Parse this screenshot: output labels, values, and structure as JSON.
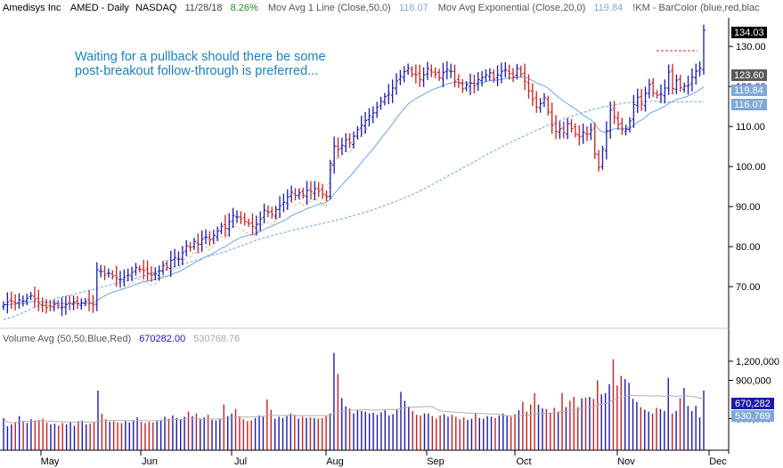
{
  "header": {
    "symbol_name": "Amedisys Inc",
    "ticker": "AMED - Daily",
    "exchange": "NASDAQ",
    "date": "11/28/18",
    "change": "8.26%",
    "ma1_label": "Mov Avg 1 Line (Close,50,0)",
    "ma1_value": "116.07",
    "ema_label": "Mov Avg Exponential (Close,20,0)",
    "ema_value": "119.84",
    "barcolor_label": "!KM - BarColor (blue,red,blac"
  },
  "annotation": {
    "line1": "Waiting for a pullback should there be some",
    "line2": "post-breakout follow-through is preferred..."
  },
  "volume_header": {
    "label": "Volume Avg (50,50,Blue,Red)",
    "avg1": "670282.00",
    "avg2": "530768.76"
  },
  "colors": {
    "up": "#1a1aa8",
    "down": "#c81e1e",
    "ma": "#6aa8e8",
    "ema_dash": "#c87850",
    "change": "#1e8c1e",
    "header_val": "#7fa8d8",
    "annotation": "#1e7fbf"
  },
  "badges": {
    "last": "134.03",
    "b1": "123.60",
    "b2": "119.84",
    "b3": "116.07",
    "v1": "670,282",
    "v2": "530,769"
  },
  "chart_data": {
    "type": "ohlc",
    "price_ticks": [
      "130.00",
      "120.00",
      "110.00",
      "100.00",
      "90.00",
      "80.00",
      "70.00"
    ],
    "price_tick_values": [
      130,
      120,
      110,
      100,
      90,
      80,
      70
    ],
    "ylim": [
      60,
      136
    ],
    "volume_ticks": [
      "1,200,000",
      "900,000",
      "300,000"
    ],
    "volume_tick_values": [
      1200000,
      900000,
      300000
    ],
    "volume_ylim": [
      0,
      1400000
    ],
    "months": [
      "May",
      "Jun",
      "Jul",
      "Aug",
      "Sep",
      "Oct",
      "Nov",
      "Dec"
    ],
    "closes": [
      65.5,
      66.2,
      66.4,
      65.8,
      66.7,
      66.4,
      67.1,
      67.8,
      66.9,
      65.8,
      65.3,
      64.8,
      65.1,
      65.6,
      65.2,
      64.9,
      65.5,
      65.8,
      66.1,
      65.7,
      65.9,
      66.3,
      66.0,
      65.4,
      74.2,
      73.8,
      72.9,
      73.4,
      72.6,
      72.1,
      71.8,
      72.4,
      72.9,
      73.6,
      74.8,
      74.3,
      74.0,
      73.4,
      72.9,
      73.2,
      73.9,
      75.3,
      74.8,
      76.6,
      77.3,
      76.9,
      78.5,
      80.2,
      79.8,
      81.3,
      80.6,
      81.9,
      82.4,
      81.7,
      82.8,
      83.9,
      85.1,
      84.6,
      86.2,
      87.8,
      87.4,
      86.9,
      86.3,
      85.7,
      85.1,
      85.6,
      86.9,
      89.1,
      88.6,
      88.0,
      89.3,
      90.2,
      91.1,
      92.4,
      93.6,
      92.8,
      93.4,
      92.8,
      94.0,
      93.7,
      94.5,
      93.9,
      93.1,
      92.4,
      100.8,
      105.1,
      104.2,
      105.3,
      106.7,
      105.9,
      107.6,
      109.2,
      110.3,
      111.5,
      112.7,
      113.4,
      114.8,
      116.3,
      117.5,
      118.2,
      119.6,
      121.4,
      122.5,
      123.7,
      124.6,
      123.1,
      122.9,
      121.8,
      122.9,
      124.5,
      123.6,
      123.1,
      122.2,
      123.5,
      124.2,
      123.8,
      121.3,
      120.9,
      119.4,
      120.4,
      120.8,
      120.2,
      121.7,
      122.2,
      122.9,
      123.4,
      121.8,
      122.9,
      123.8,
      124.2,
      123.2,
      122.4,
      124.5,
      123.1,
      121.3,
      118.9,
      116.8,
      114.9,
      115.7,
      117.2,
      113.6,
      110.3,
      108.8,
      109.4,
      108.5,
      110.7,
      109.5,
      108.1,
      107.4,
      108.6,
      108.1,
      109.2,
      103.2,
      99.8,
      104.3,
      108.9,
      114.1,
      112.3,
      110.6,
      109.2,
      109.3,
      111.4,
      115.5,
      117.3,
      115.6,
      118.3,
      120.5,
      118.4,
      117.8,
      118.1,
      119.6,
      123.6,
      119.5,
      121.6,
      119.7,
      120.1,
      120.3,
      122.4,
      123.8,
      124.6,
      134.03
    ],
    "ma50": [
      61.8,
      62.3,
      63.1,
      63.9,
      64.8,
      65.7,
      66.5,
      67.2,
      67.6,
      68.0,
      68.5,
      69.0,
      69.5,
      70.0,
      70.5,
      71.0,
      71.5,
      72.0,
      72.6,
      73.2,
      73.7,
      74.3,
      74.8,
      75.4,
      76.0,
      76.6,
      77.2,
      77.8,
      78.3,
      78.9,
      79.6,
      80.3,
      81.0,
      81.7,
      82.3,
      82.8,
      83.3,
      83.8,
      84.3,
      84.7,
      85.2,
      85.6,
      86.0,
      86.5,
      86.9,
      87.5,
      88.0,
      88.6,
      89.2,
      89.9,
      90.6,
      91.3,
      92.1,
      92.9,
      93.8,
      94.8,
      95.8,
      96.8,
      97.9,
      98.9,
      100.0,
      101.0,
      102.1,
      103.2,
      104.2,
      105.2,
      106.1,
      107.0,
      107.9,
      108.8,
      109.7,
      110.5,
      111.3,
      112.0,
      112.7,
      113.3,
      113.9,
      114.4,
      114.9,
      115.3,
      115.6,
      115.9,
      116.1,
      116.2,
      116.3,
      116.3,
      116.2,
      116.1,
      116.1,
      116.2,
      116.2,
      116.1
    ],
    "ema20": [
      65.4,
      65.5,
      65.6,
      65.7,
      65.8,
      65.8,
      66.0,
      66.2,
      66.3,
      66.3,
      66.2,
      66.1,
      66.0,
      66.0,
      65.9,
      65.8,
      65.8,
      65.8,
      65.8,
      65.8,
      65.8,
      65.8,
      65.8,
      65.8,
      66.5,
      67.2,
      67.7,
      68.2,
      68.6,
      68.9,
      69.2,
      69.5,
      69.8,
      70.2,
      70.6,
      70.9,
      71.2,
      71.4,
      71.6,
      71.8,
      72.0,
      72.4,
      72.6,
      73.0,
      73.4,
      73.7,
      74.2,
      74.8,
      75.3,
      75.9,
      76.4,
      76.9,
      77.5,
      77.9,
      78.4,
      79.0,
      79.6,
      80.0,
      80.6,
      81.3,
      81.8,
      82.3,
      82.6,
      82.9,
      83.1,
      83.4,
      83.8,
      84.3,
      84.8,
      85.1,
      85.6,
      86.0,
      86.5,
      87.1,
      87.7,
      88.2,
      88.6,
      89.0,
      89.5,
      89.8,
      90.2,
      90.6,
      90.8,
      91.1,
      91.9,
      93.2,
      94.3,
      95.4,
      96.5,
      97.5,
      98.6,
      99.8,
      101.0,
      102.2,
      103.3,
      104.4,
      105.7,
      107.0,
      108.2,
      109.4,
      110.7,
      112.1,
      113.3,
      114.5,
      115.6,
      116.3,
      117.0,
      117.5,
      118.0,
      118.6,
      119.1,
      119.5,
      119.8,
      120.2,
      120.6,
      120.9,
      121.0,
      121.0,
      120.9,
      120.9,
      120.9,
      120.8,
      120.9,
      121.0,
      121.2,
      121.5,
      121.5,
      121.6,
      121.8,
      122.0,
      122.1,
      122.1,
      122.3,
      122.4,
      122.3,
      122.0,
      121.5,
      120.9,
      120.5,
      120.2,
      119.6,
      118.7,
      117.8,
      117.1,
      116.3,
      115.7,
      115.0,
      114.4,
      113.6,
      112.9,
      112.2,
      111.7,
      110.6,
      109.3,
      108.6,
      108.6,
      109.1,
      109.4,
      109.5,
      109.5,
      109.5,
      109.7,
      110.3,
      111.1,
      111.6,
      112.3,
      113.2,
      113.7,
      114.1,
      114.6,
      115.0,
      115.8,
      116.2,
      116.8,
      117.0,
      117.3,
      117.6,
      118.1,
      118.6,
      119.2,
      119.84
    ],
    "volume": [
      310000,
      180000,
      210000,
      250000,
      340000,
      260000,
      230000,
      290000,
      270000,
      280000,
      300000,
      240000,
      210000,
      220000,
      190000,
      230000,
      210000,
      240000,
      190000,
      260000,
      270000,
      210000,
      220000,
      250000,
      740000,
      380000,
      290000,
      250000,
      260000,
      240000,
      230000,
      260000,
      240000,
      270000,
      320000,
      250000,
      230000,
      250000,
      240000,
      260000,
      280000,
      330000,
      300000,
      350000,
      310000,
      280000,
      330000,
      410000,
      340000,
      380000,
      300000,
      320000,
      360000,
      280000,
      270000,
      300000,
      520000,
      340000,
      380000,
      450000,
      340000,
      290000,
      260000,
      270000,
      310000,
      350000,
      330000,
      600000,
      440000,
      300000,
      330000,
      310000,
      340000,
      380000,
      360000,
      300000,
      330000,
      310000,
      320000,
      310000,
      300000,
      310000,
      350000,
      380000,
      1330000,
      1000000,
      620000,
      490000,
      460000,
      380000,
      430000,
      420000,
      410000,
      380000,
      390000,
      360000,
      400000,
      430000,
      350000,
      370000,
      440000,
      720000,
      580000,
      490000,
      420000,
      360000,
      350000,
      380000,
      380000,
      340000,
      300000,
      350000,
      370000,
      330000,
      360000,
      330000,
      290000,
      320000,
      280000,
      300000,
      390000,
      310000,
      300000,
      340000,
      330000,
      310000,
      350000,
      380000,
      340000,
      330000,
      370000,
      430000,
      560000,
      410000,
      520000,
      700000,
      520000,
      460000,
      450000,
      390000,
      470000,
      410000,
      700000,
      480000,
      580000,
      640000,
      480000,
      620000,
      630000,
      640000,
      610000,
      900000,
      680000,
      700000,
      840000,
      1230000,
      820000,
      970000,
      920000,
      860000,
      610000,
      560000,
      480000,
      440000,
      410000,
      380000,
      470000,
      450000,
      420000,
      940000,
      380000,
      420000,
      620000,
      780000,
      500000,
      420000,
      500000,
      320000,
      740000
    ]
  }
}
